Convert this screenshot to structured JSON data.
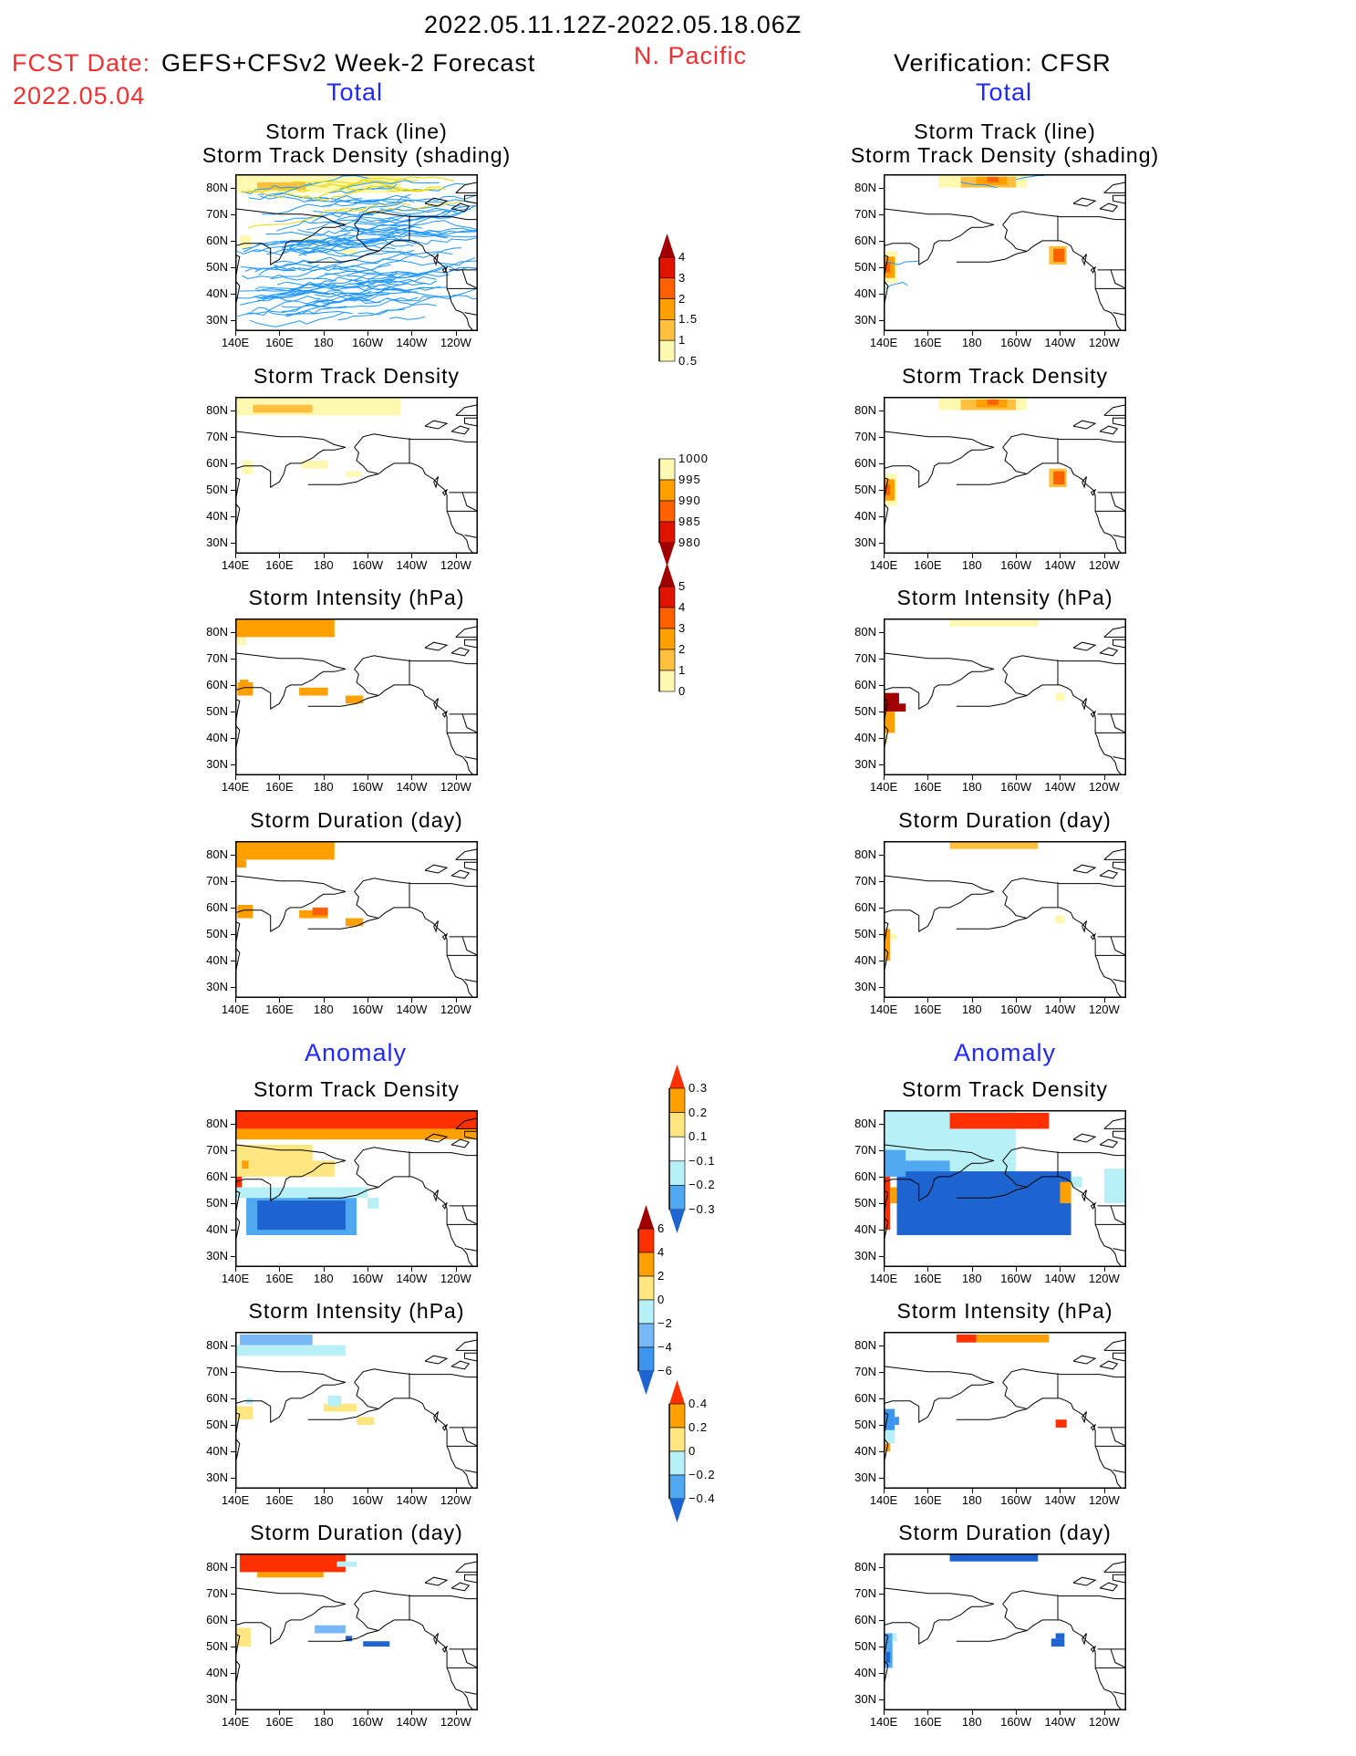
{
  "header": {
    "period": "2022.05.11.12Z-2022.05.18.06Z",
    "fcst_label": "FCST Date:",
    "fcst_model": "GEFS+CFSv2 Week-2 Forecast",
    "fcst_date": "2022.05.04",
    "region": "N. Pacific",
    "verification": "Verification: CFSR",
    "total_left": "Total",
    "total_right": "Total",
    "anomaly_left": "Anomaly",
    "anomaly_right": "Anomaly"
  },
  "axes": {
    "lat_labels": [
      "80N",
      "70N",
      "60N",
      "50N",
      "40N",
      "30N"
    ],
    "lon_labels": [
      "140E",
      "160E",
      "180",
      "160W",
      "140W",
      "120W"
    ]
  },
  "panels": {
    "left": [
      {
        "titles": [
          "Storm Track (line)",
          "Storm Track Density (shading)"
        ]
      },
      {
        "titles": [
          "Storm Track Density"
        ]
      },
      {
        "titles": [
          "Storm Intensity (hPa)"
        ]
      },
      {
        "titles": [
          "Storm Duration (day)"
        ]
      },
      {
        "titles": [
          "Storm Track Density"
        ]
      },
      {
        "titles": [
          "Storm Intensity (hPa)"
        ]
      },
      {
        "titles": [
          "Storm Duration (day)"
        ]
      }
    ],
    "right": [
      {
        "titles": [
          "Storm Track (line)",
          "Storm Track Density (shading)"
        ]
      },
      {
        "titles": [
          "Storm Track Density"
        ]
      },
      {
        "titles": [
          "Storm Intensity (hPa)"
        ]
      },
      {
        "titles": [
          "Storm Duration (day)"
        ]
      },
      {
        "titles": [
          "Storm Track Density"
        ]
      },
      {
        "titles": [
          "Storm Intensity (hPa)"
        ]
      },
      {
        "titles": [
          "Storm Duration (day)"
        ]
      }
    ]
  },
  "colorbars": [
    {
      "name": "track-density",
      "labels": [
        "4",
        "3",
        "2",
        "1.5",
        "1",
        "0.5"
      ],
      "top_tip": "#a00000",
      "colors": [
        "#e01400",
        "#ff6000",
        "#ffa000",
        "#ffc040",
        "#fff8b0"
      ],
      "bottom_tip": null
    },
    {
      "name": "intensity",
      "labels": [
        "1000",
        "995",
        "990",
        "985",
        "980"
      ],
      "top_tip": null,
      "colors": [
        "#fff8b0",
        "#ffa000",
        "#ff6000",
        "#e01400"
      ],
      "bottom_tip": "#a00000"
    },
    {
      "name": "duration",
      "labels": [
        "5",
        "4",
        "3",
        "2",
        "1",
        "0"
      ],
      "top_tip": "#a00000",
      "colors": [
        "#e01400",
        "#ff6000",
        "#ffa000",
        "#ffc040",
        "#fff8b0"
      ],
      "bottom_tip": null
    },
    {
      "name": "density-anomaly",
      "labels": [
        "0.3",
        "0.2",
        "0.1",
        "−0.1",
        "−0.2",
        "−0.3"
      ],
      "top_tip": "#ff3000",
      "colors": [
        "#ffa000",
        "#ffe680",
        "#ffffff",
        "#b8f0f8",
        "#50a8f0"
      ],
      "bottom_tip": "#1e64d0"
    },
    {
      "name": "intensity-anomaly",
      "labels": [
        "6",
        "4",
        "2",
        "0",
        "−2",
        "−4",
        "−6"
      ],
      "top_tip": "#a00000",
      "colors": [
        "#ff3000",
        "#ffa000",
        "#ffe680",
        "#b8f0f8",
        "#78b8f8",
        "#3c96f0"
      ],
      "bottom_tip": "#1e64d0"
    },
    {
      "name": "duration-anomaly",
      "labels": [
        "0.4",
        "0.2",
        "0",
        "−0.2",
        "−0.4"
      ],
      "top_tip": "#ff3000",
      "colors": [
        "#ffa000",
        "#ffe680",
        "#b8f0f8",
        "#50a8f0"
      ],
      "bottom_tip": "#1e64d0"
    }
  ]
}
